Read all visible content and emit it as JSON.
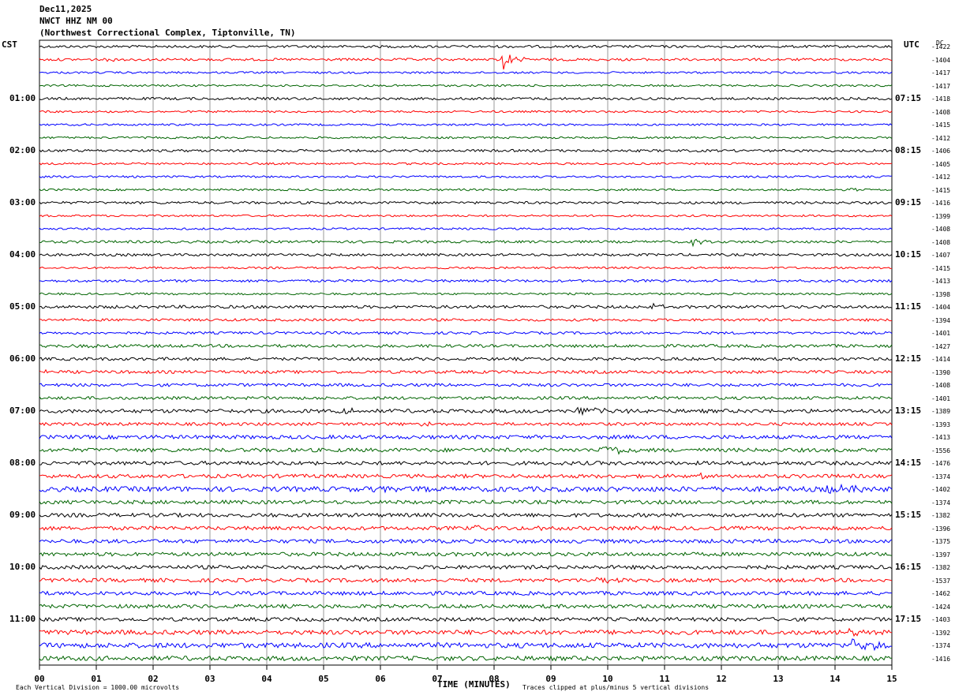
{
  "header": {
    "date": "Dec11,2025",
    "station": "NWCT HHZ NM 00",
    "location": "(Northwest Correctional Complex, Tiptonville, TN)"
  },
  "left_axis_label": "CST",
  "right_axis_label": "UTC",
  "dc_label": "DC",
  "footer": {
    "scale_note": "Each Vertical Division = 1000.00 microvolts",
    "xlabel": "TIME (MINUTES)",
    "clip_note": "Traces clipped at plus/minus 5 vertical divisions"
  },
  "colors": {
    "black": "#000000",
    "red": "#ff0000",
    "blue": "#0000ff",
    "green": "#006400",
    "grid": "#808080"
  },
  "chart_data": {
    "type": "line",
    "title": "NWCT HHZ NM 00",
    "xlabel": "TIME (MINUTES)",
    "ylabel": "",
    "xlim": [
      0,
      15
    ],
    "x_ticks": [
      "00",
      "01",
      "02",
      "03",
      "04",
      "05",
      "06",
      "07",
      "08",
      "09",
      "10",
      "11",
      "12",
      "13",
      "14",
      "15"
    ],
    "row_minutes": 15,
    "color_cycle": [
      "black",
      "red",
      "blue",
      "green"
    ],
    "left_time_labels": [
      {
        "row": 4,
        "label": "01:00"
      },
      {
        "row": 8,
        "label": "02:00"
      },
      {
        "row": 12,
        "label": "03:00"
      },
      {
        "row": 16,
        "label": "04:00"
      },
      {
        "row": 20,
        "label": "05:00"
      },
      {
        "row": 24,
        "label": "06:00"
      },
      {
        "row": 28,
        "label": "07:00"
      },
      {
        "row": 32,
        "label": "08:00"
      },
      {
        "row": 36,
        "label": "09:00"
      },
      {
        "row": 40,
        "label": "10:00"
      },
      {
        "row": 44,
        "label": "11:00"
      }
    ],
    "right_time_labels": [
      {
        "row": 4,
        "label": "07:15"
      },
      {
        "row": 8,
        "label": "08:15"
      },
      {
        "row": 12,
        "label": "09:15"
      },
      {
        "row": 16,
        "label": "10:15"
      },
      {
        "row": 20,
        "label": "11:15"
      },
      {
        "row": 24,
        "label": "12:15"
      },
      {
        "row": 28,
        "label": "13:15"
      },
      {
        "row": 32,
        "label": "14:15"
      },
      {
        "row": 36,
        "label": "15:15"
      },
      {
        "row": 40,
        "label": "16:15"
      },
      {
        "row": 44,
        "label": "17:15"
      }
    ],
    "dc_offsets": [
      "-1422",
      "-1404",
      "-1417",
      "-1417",
      "-1418",
      "-1408",
      "-1415",
      "-1412",
      "-1406",
      "-1405",
      "-1412",
      "-1415",
      "-1416",
      "-1399",
      "-1408",
      "-1408",
      "-1407",
      "-1415",
      "-1413",
      "-1398",
      "-1404",
      "-1394",
      "-1401",
      "-1427",
      "-1414",
      "-1390",
      "-1408",
      "-1401",
      "-1389",
      "-1393",
      "-1413",
      "-1556",
      "-1476",
      "-1374",
      "-1402",
      "-1374",
      "-1382",
      "-1396",
      "-1375",
      "-1397",
      "-1382",
      "-1537",
      "-1462",
      "-1424",
      "-1403",
      "-1392",
      "-1374",
      "-1416"
    ],
    "row_noise_amplitude": [
      1,
      1,
      0.8,
      0.8,
      1,
      0.8,
      0.8,
      0.8,
      1,
      0.8,
      0.8,
      0.8,
      1,
      0.8,
      0.8,
      1,
      1,
      0.8,
      1,
      0.8,
      1.2,
      1,
      1,
      1.2,
      1.2,
      1.2,
      1.2,
      1.2,
      1.5,
      1.2,
      1.5,
      1.5,
      1.5,
      1.5,
      2,
      1.5,
      1.5,
      1.5,
      1.5,
      1.5,
      1.5,
      1.5,
      1.5,
      1.5,
      1.5,
      1.8,
      2,
      1.8
    ],
    "events": [
      {
        "row": 1,
        "minute": 8.15,
        "amplitude": 14,
        "duration": 0.4
      },
      {
        "row": 1,
        "minute": 1.2,
        "amplitude": 3,
        "duration": 0.2
      },
      {
        "row": 11,
        "minute": 14.3,
        "amplitude": 3,
        "duration": 0.3
      },
      {
        "row": 15,
        "minute": 11.5,
        "amplitude": 4,
        "duration": 0.6
      },
      {
        "row": 20,
        "minute": 10.8,
        "amplitude": 3,
        "duration": 0.4
      },
      {
        "row": 23,
        "minute": 0.9,
        "amplitude": 3,
        "duration": 0.5
      },
      {
        "row": 25,
        "minute": 0.1,
        "amplitude": 5,
        "duration": 0.2
      },
      {
        "row": 26,
        "minute": 12.3,
        "amplitude": 3,
        "duration": 0.6
      },
      {
        "row": 28,
        "minute": 9.4,
        "amplitude": 5,
        "duration": 1.2
      },
      {
        "row": 28,
        "minute": 5.3,
        "amplitude": 4,
        "duration": 0.6
      },
      {
        "row": 29,
        "minute": 6.7,
        "amplitude": 4,
        "duration": 0.5
      },
      {
        "row": 31,
        "minute": 9.9,
        "amplitude": 8,
        "duration": 0.8
      },
      {
        "row": 31,
        "minute": 7.5,
        "amplitude": 3,
        "duration": 0.5
      },
      {
        "row": 32,
        "minute": 4.9,
        "amplitude": 4,
        "duration": 0.6
      },
      {
        "row": 33,
        "minute": 11.6,
        "amplitude": 3,
        "duration": 0.4
      },
      {
        "row": 34,
        "minute": 13.9,
        "amplitude": 10,
        "duration": 0.7
      },
      {
        "row": 34,
        "minute": 5.8,
        "amplitude": 4,
        "duration": 1.0
      },
      {
        "row": 37,
        "minute": 7.7,
        "amplitude": 4,
        "duration": 0.6
      },
      {
        "row": 37,
        "minute": 8.8,
        "amplitude": 4,
        "duration": 0.4
      },
      {
        "row": 41,
        "minute": 9.8,
        "amplitude": 4,
        "duration": 0.5
      },
      {
        "row": 45,
        "minute": 14.2,
        "amplitude": 5,
        "duration": 0.6
      },
      {
        "row": 46,
        "minute": 14.3,
        "amplitude": 8,
        "duration": 0.8
      },
      {
        "row": 47,
        "minute": 10.4,
        "amplitude": 3,
        "duration": 0.4
      }
    ]
  }
}
